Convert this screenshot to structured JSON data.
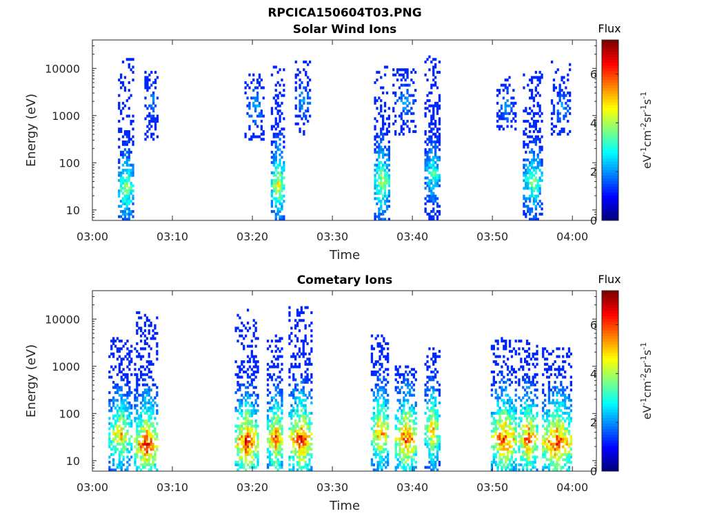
{
  "figure_title": "RPCICA150604T03.PNG",
  "chart_data": [
    {
      "type": "heatmap",
      "title": "Solar Wind Ions",
      "xlabel": "Time",
      "ylabel": "Energy (eV)",
      "y_scale": "log",
      "ylim": [
        6,
        40000
      ],
      "xlim": [
        "03:00",
        "04:03"
      ],
      "x_ticks": [
        "03:00",
        "03:10",
        "03:20",
        "03:30",
        "03:40",
        "03:50",
        "04:00"
      ],
      "y_ticks": [
        "10",
        "100",
        "1000",
        "10000"
      ],
      "colorbar": {
        "label_top": "Flux",
        "range": [
          0,
          7.4
        ],
        "ticks": [
          "0",
          "2",
          "4",
          "6"
        ],
        "colormap": "jet"
      },
      "bursts": [
        {
          "t0": 3.2,
          "t1": 5.0,
          "e_min": 6,
          "e_max": 20000,
          "peak_flux": 4.4,
          "core_energy": 30,
          "density": 0.75
        },
        {
          "t0": 6.5,
          "t1": 8.2,
          "e_min": 300,
          "e_max": 9000,
          "peak_flux": 2.2,
          "core_energy": 2000,
          "density": 0.35
        },
        {
          "t0": 19.0,
          "t1": 21.5,
          "e_min": 300,
          "e_max": 8000,
          "peak_flux": 2.4,
          "core_energy": 1500,
          "density": 0.3
        },
        {
          "t0": 22.3,
          "t1": 24.0,
          "e_min": 6,
          "e_max": 12000,
          "peak_flux": 5.0,
          "core_energy": 35,
          "density": 0.8
        },
        {
          "t0": 25.3,
          "t1": 27.2,
          "e_min": 400,
          "e_max": 15000,
          "peak_flux": 2.4,
          "core_energy": 2000,
          "density": 0.35
        },
        {
          "t0": 35.2,
          "t1": 37.0,
          "e_min": 6,
          "e_max": 12000,
          "peak_flux": 4.6,
          "core_energy": 40,
          "density": 0.8
        },
        {
          "t0": 37.5,
          "t1": 40.5,
          "e_min": 400,
          "e_max": 10000,
          "peak_flux": 2.3,
          "core_energy": 2000,
          "density": 0.35
        },
        {
          "t0": 41.5,
          "t1": 43.5,
          "e_min": 6,
          "e_max": 20000,
          "peak_flux": 3.6,
          "core_energy": 60,
          "density": 0.8
        },
        {
          "t0": 50.5,
          "t1": 52.8,
          "e_min": 500,
          "e_max": 7000,
          "peak_flux": 2.2,
          "core_energy": 1500,
          "density": 0.3
        },
        {
          "t0": 53.8,
          "t1": 56.2,
          "e_min": 6,
          "e_max": 9000,
          "peak_flux": 4.0,
          "core_energy": 40,
          "density": 0.75
        },
        {
          "t0": 57.3,
          "t1": 59.8,
          "e_min": 400,
          "e_max": 14000,
          "peak_flux": 2.2,
          "core_energy": 1500,
          "density": 0.3
        }
      ]
    },
    {
      "type": "heatmap",
      "title": "Cometary Ions",
      "xlabel": "Time",
      "ylabel": "Energy (eV)",
      "y_scale": "log",
      "ylim": [
        6,
        40000
      ],
      "xlim": [
        "03:00",
        "04:03"
      ],
      "x_ticks": [
        "03:00",
        "03:10",
        "03:20",
        "03:30",
        "03:40",
        "03:50",
        "04:00"
      ],
      "y_ticks": [
        "10",
        "100",
        "1000",
        "10000"
      ],
      "colorbar": {
        "label_top": "Flux",
        "range": [
          0,
          7.4
        ],
        "ticks": [
          "0",
          "2",
          "4",
          "6"
        ],
        "colormap": "jet"
      },
      "bursts": [
        {
          "t0": 2.0,
          "t1": 4.8,
          "e_min": 6,
          "e_max": 4000,
          "peak_flux": 5.6,
          "core_energy": 35,
          "density": 0.75
        },
        {
          "t0": 5.2,
          "t1": 8.2,
          "e_min": 6,
          "e_max": 17000,
          "peak_flux": 7.0,
          "core_energy": 22,
          "density": 0.8
        },
        {
          "t0": 17.8,
          "t1": 20.6,
          "e_min": 6,
          "e_max": 16000,
          "peak_flux": 7.0,
          "core_energy": 25,
          "density": 0.8
        },
        {
          "t0": 21.8,
          "t1": 23.8,
          "e_min": 6,
          "e_max": 5000,
          "peak_flux": 6.4,
          "core_energy": 30,
          "density": 0.8
        },
        {
          "t0": 24.5,
          "t1": 27.5,
          "e_min": 6,
          "e_max": 20000,
          "peak_flux": 7.0,
          "core_energy": 28,
          "density": 0.8
        },
        {
          "t0": 34.8,
          "t1": 37.0,
          "e_min": 6,
          "e_max": 5000,
          "peak_flux": 6.2,
          "core_energy": 40,
          "density": 0.8
        },
        {
          "t0": 37.8,
          "t1": 40.5,
          "e_min": 6,
          "e_max": 1000,
          "peak_flux": 6.8,
          "core_energy": 30,
          "density": 0.8
        },
        {
          "t0": 41.5,
          "t1": 43.3,
          "e_min": 6,
          "e_max": 2500,
          "peak_flux": 5.8,
          "core_energy": 45,
          "density": 0.75
        },
        {
          "t0": 49.8,
          "t1": 53.0,
          "e_min": 6,
          "e_max": 4000,
          "peak_flux": 6.8,
          "core_energy": 30,
          "density": 0.8
        },
        {
          "t0": 53.2,
          "t1": 55.6,
          "e_min": 6,
          "e_max": 3500,
          "peak_flux": 6.6,
          "core_energy": 30,
          "density": 0.8
        },
        {
          "t0": 56.2,
          "t1": 59.8,
          "e_min": 6,
          "e_max": 2500,
          "peak_flux": 7.0,
          "core_energy": 25,
          "density": 0.8
        }
      ]
    }
  ]
}
